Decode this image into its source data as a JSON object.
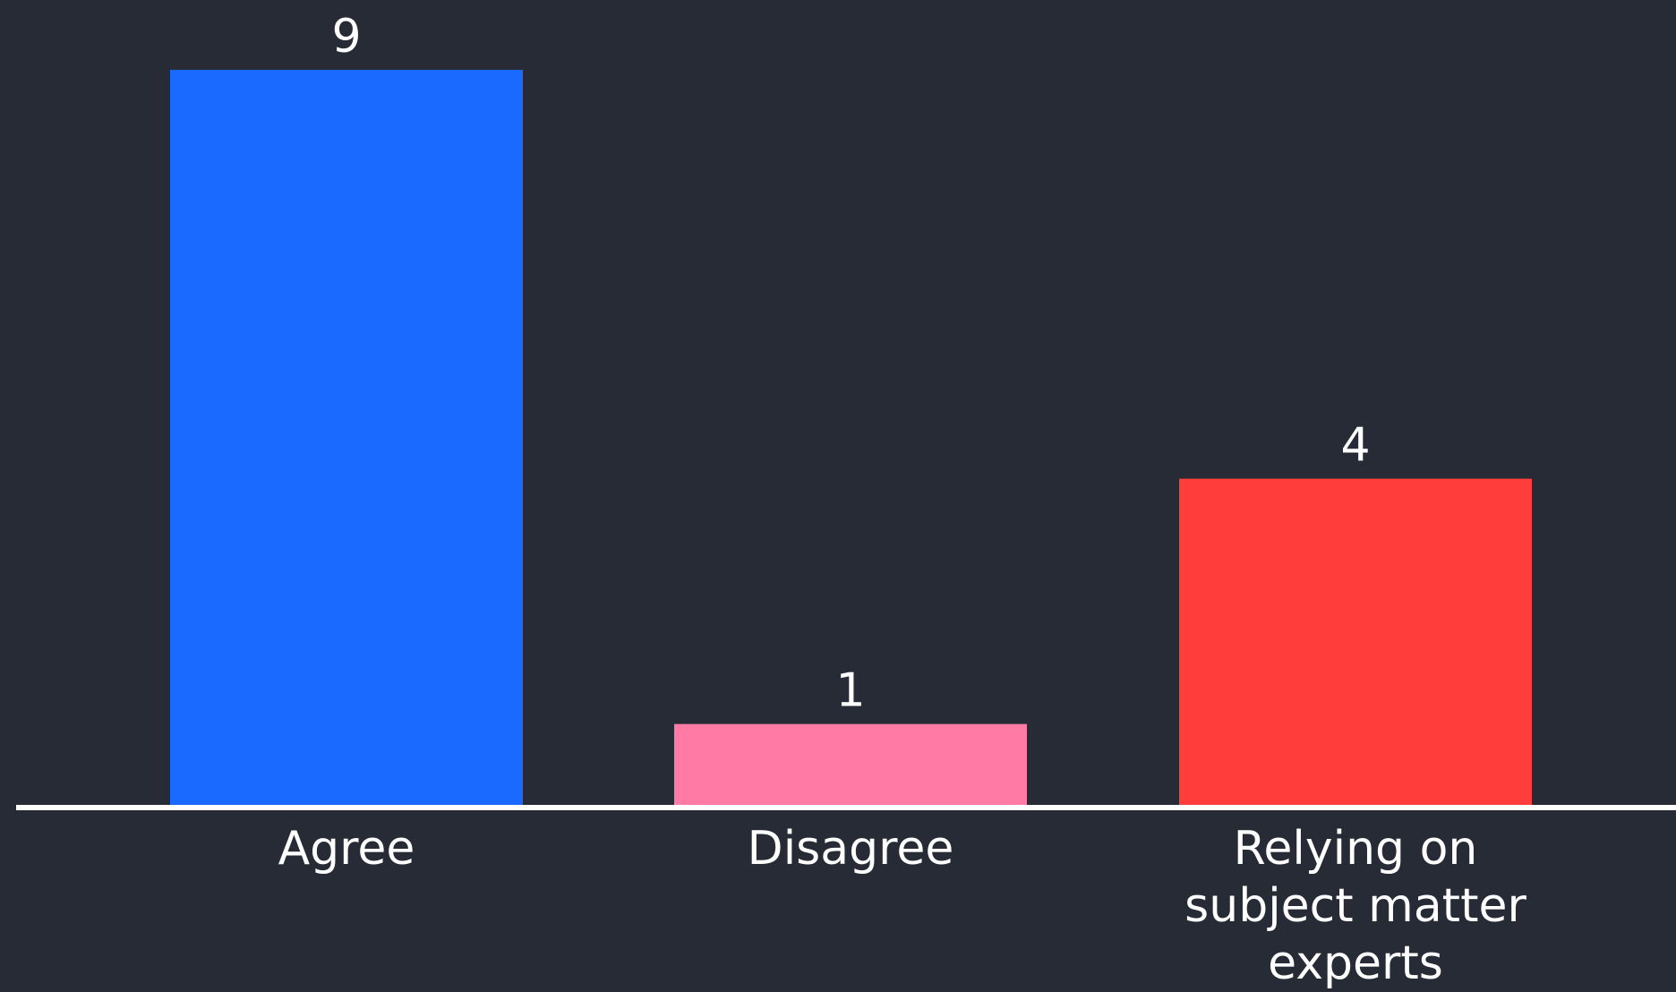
{
  "chart_data": {
    "type": "bar",
    "categories": [
      "Agree",
      "Disagree",
      "Relying on subject matter experts"
    ],
    "category_lines": [
      [
        "Agree"
      ],
      [
        "Disagree"
      ],
      [
        "Relying on",
        "subject matter",
        "experts"
      ]
    ],
    "values": [
      9,
      1,
      4
    ],
    "value_labels": [
      "9",
      "1",
      "4"
    ],
    "colors": [
      "#1a6aff",
      "#ff7ba6",
      "#ff3e3b"
    ],
    "ylim": [
      0,
      9
    ],
    "grid": false,
    "legend": "none",
    "title": "",
    "xlabel": "",
    "ylabel": ""
  },
  "theme": {
    "background": "#262b35",
    "axis_color": "#ffffff",
    "text_color": "#ffffff"
  }
}
